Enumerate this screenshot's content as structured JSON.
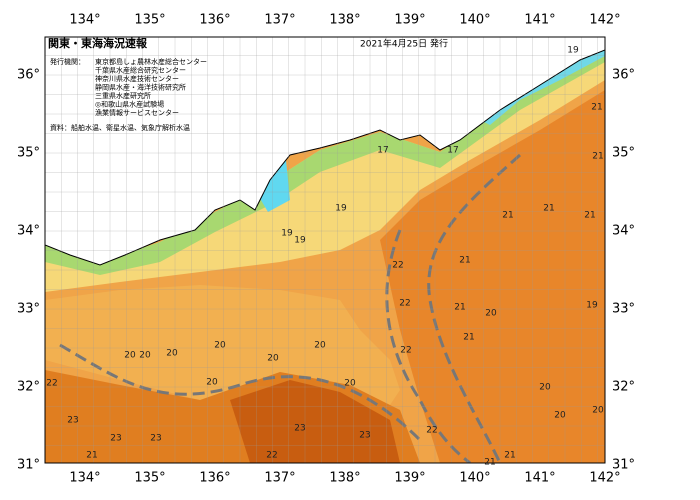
{
  "header": {
    "title": "関東・東海海況速報",
    "date": "2021年4月25日 発行"
  },
  "issuers": {
    "label": "発行機関：",
    "list": [
      "東京都島しょ農林水産総合センター",
      "千葉県水産総合研究センター",
      "神奈川県水産技術センター",
      "静岡県水産・海洋技術研究所",
      "三重県水産研究所",
      "◎和歌山県水産試験場",
      "漁業情報サービスセンター"
    ]
  },
  "source": "資料：船舶水温、衛星水温、気象庁解析水温",
  "longitudes": [
    "134°",
    "135°",
    "136°",
    "137°",
    "138°",
    "139°",
    "140°",
    "141°",
    "142°"
  ],
  "latitudes": [
    "36°",
    "35°",
    "34°",
    "33°",
    "32°",
    "31°"
  ],
  "temperature_labels": [
    "19",
    "21",
    "21",
    "21",
    "21",
    "21",
    "21",
    "22",
    "22",
    "22",
    "22",
    "21",
    "21",
    "20",
    "19",
    "20",
    "20",
    "20",
    "20",
    "20",
    "20",
    "20",
    "20",
    "20",
    "20",
    "20",
    "23",
    "23",
    "23",
    "23",
    "23",
    "22",
    "21",
    "21",
    "19",
    "19",
    "19",
    "17",
    "17",
    "22",
    "21"
  ]
}
